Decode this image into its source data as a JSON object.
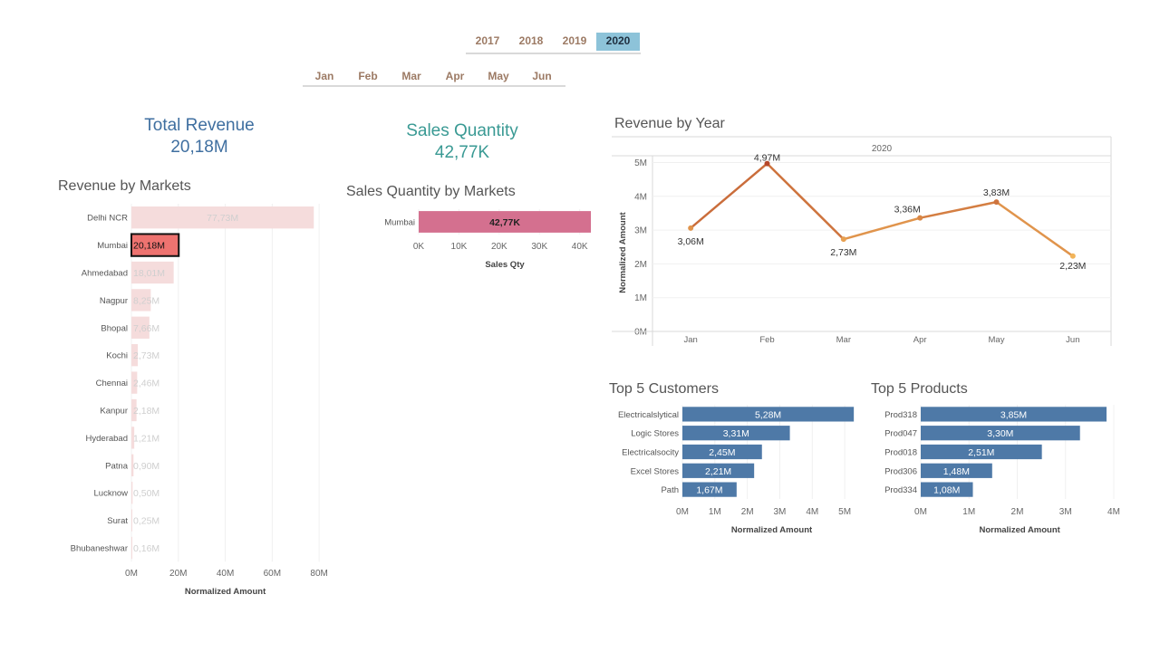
{
  "filters": {
    "years": [
      "2017",
      "2018",
      "2019",
      "2020"
    ],
    "selected_year": "2020",
    "months": [
      "Jan",
      "Feb",
      "Mar",
      "Apr",
      "May",
      "Jun"
    ]
  },
  "kpis": {
    "revenue_label": "Total Revenue",
    "revenue_value": "20,18M",
    "quantity_label": "Sales Quantity",
    "quantity_value": "42,77K"
  },
  "titles": {
    "markets": "Revenue by Markets",
    "qty_markets": "Sales Quantity by Markets",
    "year": "Revenue by Year",
    "customers": "Top 5 Customers",
    "products": "Top 5 Products"
  },
  "colors": {
    "highlight": "#ee7370",
    "faded": "#f5dcdc",
    "qty_bar": "#d4708f",
    "top5_bar": "#4e79a7",
    "line_start": "#b5472a",
    "line_end": "#f2b45a"
  },
  "chart_data": [
    {
      "id": "markets",
      "type": "bar",
      "orientation": "horizontal",
      "title": "Revenue by Markets",
      "categories": [
        "Delhi NCR",
        "Mumbai",
        "Ahmedabad",
        "Nagpur",
        "Bhopal",
        "Kochi",
        "Chennai",
        "Kanpur",
        "Hyderabad",
        "Patna",
        "Lucknow",
        "Surat",
        "Bhubaneshwar"
      ],
      "values": [
        77.73,
        20.18,
        18.01,
        8.25,
        7.66,
        2.73,
        2.46,
        2.18,
        1.21,
        0.9,
        0.5,
        0.25,
        0.16
      ],
      "labels": [
        "77,73M",
        "20,18M",
        "18,01M",
        "8,25M",
        "7,66M",
        "2,73M",
        "2,46M",
        "2,18M",
        "1,21M",
        "0,90M",
        "0,50M",
        "0,25M",
        "0,16M"
      ],
      "highlighted": "Mumbai",
      "xlim": [
        0,
        80
      ],
      "xticks": [
        "0M",
        "20M",
        "40M",
        "60M",
        "80M"
      ],
      "xlabel": "Normalized Amount"
    },
    {
      "id": "qty",
      "type": "bar",
      "orientation": "horizontal",
      "title": "Sales Quantity by Markets",
      "categories": [
        "Mumbai"
      ],
      "values": [
        42.77
      ],
      "labels": [
        "42,77K"
      ],
      "xlim": [
        0,
        42.77
      ],
      "xticks": [
        "0K",
        "10K",
        "20K",
        "30K",
        "40K"
      ],
      "xlabel": "Sales Qty"
    },
    {
      "id": "year",
      "type": "line",
      "title": "Revenue by Year",
      "column_header": "2020",
      "categories": [
        "Jan",
        "Feb",
        "Mar",
        "Apr",
        "May",
        "Jun"
      ],
      "values": [
        3.06,
        4.97,
        2.73,
        3.36,
        3.83,
        2.23
      ],
      "labels": [
        "3,06M",
        "4,97M",
        "2,73M",
        "3,36M",
        "3,83M",
        "2,23M"
      ],
      "ylim": [
        0,
        5.2
      ],
      "yticks": [
        "0M",
        "1M",
        "2M",
        "3M",
        "4M",
        "5M"
      ],
      "ylabel": "Normalized Amount"
    },
    {
      "id": "customers",
      "type": "bar",
      "orientation": "horizontal",
      "title": "Top 5 Customers",
      "categories": [
        "Electricalslytical",
        "Logic Stores",
        "Electricalsocity",
        "Excel Stores",
        "Path"
      ],
      "values": [
        5.28,
        3.31,
        2.45,
        2.21,
        1.67
      ],
      "labels": [
        "5,28M",
        "3,31M",
        "2,45M",
        "2,21M",
        "1,67M"
      ],
      "xlim": [
        0,
        5.5
      ],
      "xticks": [
        "0M",
        "1M",
        "2M",
        "3M",
        "4M",
        "5M"
      ],
      "xlabel": "Normalized Amount"
    },
    {
      "id": "products",
      "type": "bar",
      "orientation": "horizontal",
      "title": "Top 5 Products",
      "categories": [
        "Prod318",
        "Prod047",
        "Prod018",
        "Prod306",
        "Prod334"
      ],
      "values": [
        3.85,
        3.3,
        2.51,
        1.48,
        1.08
      ],
      "labels": [
        "3,85M",
        "3,30M",
        "2,51M",
        "1,48M",
        "1,08M"
      ],
      "xlim": [
        0,
        4.1
      ],
      "xticks": [
        "0M",
        "1M",
        "2M",
        "3M",
        "4M"
      ],
      "xlabel": "Normalized Amount"
    }
  ]
}
